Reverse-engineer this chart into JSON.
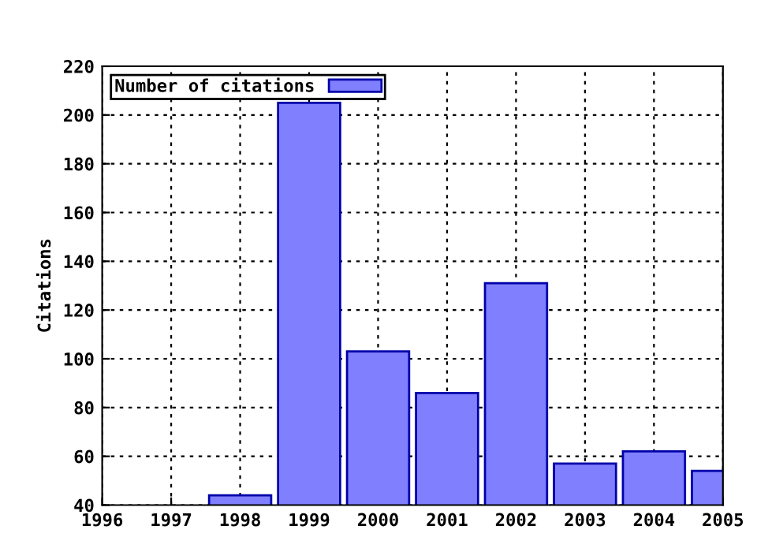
{
  "chart_data": {
    "type": "bar",
    "ylabel": "Citations",
    "x": [
      1998,
      1999,
      2000,
      2001,
      2002,
      2003,
      2004,
      2005
    ],
    "series": [
      {
        "name": "Number of citations",
        "color": "#8080ff",
        "values": [
          44,
          205,
          103,
          86,
          131,
          57,
          62,
          54
        ]
      }
    ],
    "xlim": [
      1996,
      2005
    ],
    "xticks": [
      1996,
      1997,
      1998,
      1999,
      2000,
      2001,
      2002,
      2003,
      2004,
      2005
    ],
    "ylim": [
      40,
      220
    ],
    "yticks": [
      40,
      60,
      80,
      100,
      120,
      140,
      160,
      180,
      200,
      220
    ],
    "grid": true,
    "legend": "top left"
  }
}
